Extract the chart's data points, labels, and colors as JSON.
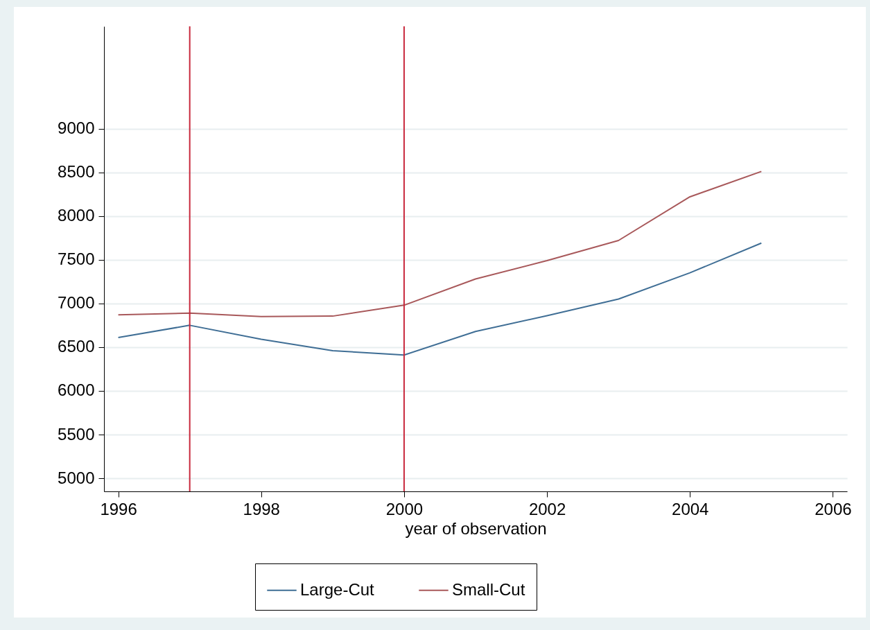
{
  "chart_data": {
    "type": "line",
    "xlabel": "year of observation",
    "x": [
      1996,
      1997,
      1998,
      1999,
      2000,
      2001,
      2002,
      2003,
      2004,
      2005
    ],
    "series": [
      {
        "name": "Large-Cut",
        "color": "#3f6e95",
        "values": [
          6610,
          6750,
          6590,
          6460,
          6410,
          6680,
          6860,
          7050,
          7350,
          7690
        ]
      },
      {
        "name": "Small-Cut",
        "color": "#a8585a",
        "values": [
          6870,
          6890,
          6850,
          6855,
          6980,
          7280,
          7490,
          7720,
          8220,
          8510
        ]
      }
    ],
    "xlim": [
      1995.8,
      2006.2
    ],
    "xticks": [
      1996,
      1998,
      2000,
      2002,
      2004,
      2006
    ],
    "ylim": [
      4850,
      10170
    ],
    "yticks": [
      5000,
      5500,
      6000,
      6500,
      7000,
      7500,
      8000,
      8500,
      9000
    ],
    "ref_lines": [
      {
        "axis": "x",
        "value": 1997,
        "color": "#c8283c"
      },
      {
        "axis": "x",
        "value": 2000,
        "color": "#c8283c"
      }
    ],
    "grid": "y",
    "legend": "bottom",
    "marker": "none",
    "line_style": "solid"
  }
}
